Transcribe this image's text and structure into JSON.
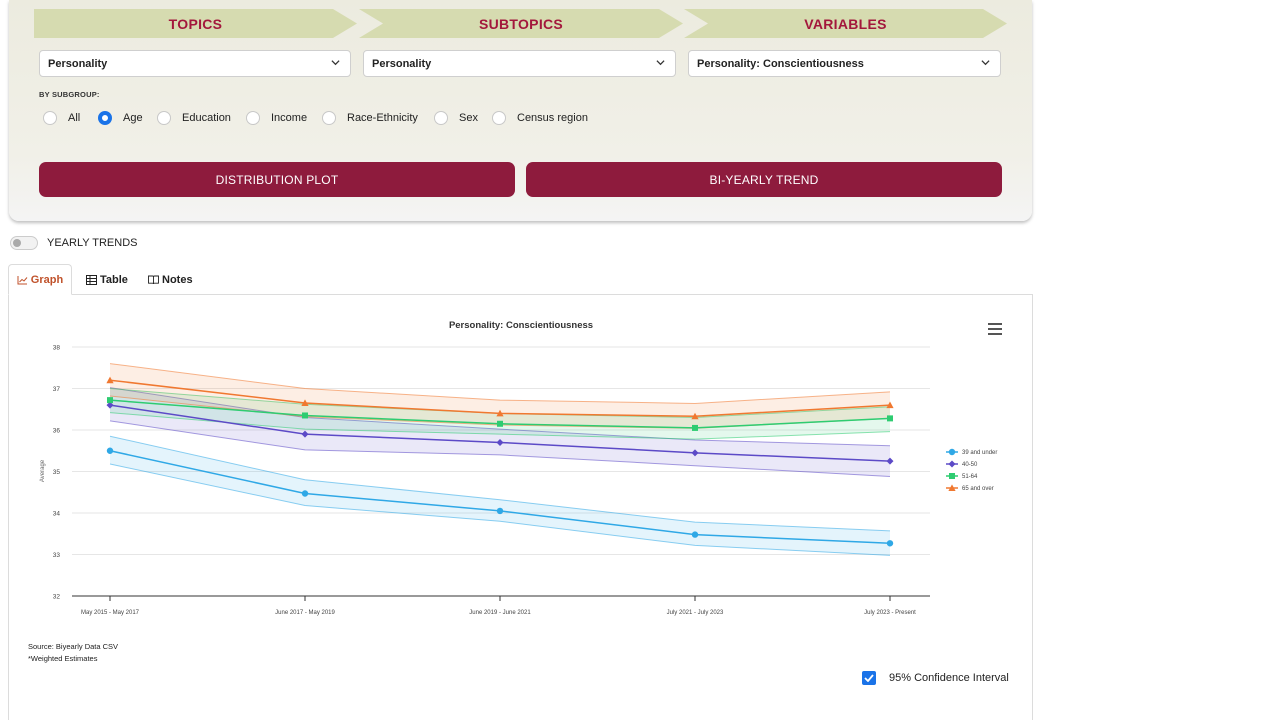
{
  "filters": {
    "steps": [
      "TOPICS",
      "SUBTOPICS",
      "VARIABLES"
    ],
    "topic_value": "Personality",
    "subtopic_value": "Personality",
    "variable_value": "Personality: Conscientiousness",
    "subgroup_label": "BY SUBGROUP:",
    "subgroups": [
      "All",
      "Age",
      "Education",
      "Income",
      "Race-Ethnicity",
      "Sex",
      "Census region"
    ],
    "selected_subgroup": "Age",
    "distribution_button": "DISTRIBUTION PLOT",
    "trend_button": "BI-YEARLY TREND"
  },
  "toggle": {
    "label": "YEARLY TRENDS",
    "on": false
  },
  "tabs": [
    "Graph",
    "Table",
    "Notes"
  ],
  "active_tab": "Graph",
  "footer": {
    "source": "Source: Biyearly Data CSV",
    "note": "*Weighted Estimates",
    "ci_label": "95% Confidence Interval",
    "ci_checked": true
  },
  "colors": {
    "accent": "#8e1b3d",
    "header_text": "#a3173c",
    "chevron": "#d6dbb0",
    "tab_active": "#c0522b",
    "check": "#1a73e8"
  },
  "chart_data": {
    "type": "line",
    "title": "Personality: Conscientiousness",
    "xlabel": "",
    "ylabel": "Average",
    "ylim": [
      32,
      38
    ],
    "yticks": [
      32,
      33,
      34,
      35,
      36,
      37,
      38
    ],
    "categories": [
      "May 2015 - May 2017",
      "June 2017 - May 2019",
      "June 2019 - June 2021",
      "July 2021 - July 2023",
      "July 2023 - Present"
    ],
    "legend_position": "right",
    "series": [
      {
        "name": "39 and under",
        "color": "#2fa8e6",
        "marker": "circle",
        "values": [
          35.5,
          34.47,
          34.05,
          33.48,
          33.27
        ],
        "lower": [
          35.18,
          34.18,
          33.8,
          33.22,
          32.98
        ],
        "upper": [
          35.85,
          34.8,
          34.32,
          33.78,
          33.57
        ]
      },
      {
        "name": "40-50",
        "color": "#5c4ac7",
        "marker": "diamond",
        "values": [
          36.6,
          35.9,
          35.7,
          35.45,
          35.25
        ],
        "lower": [
          36.22,
          35.52,
          35.4,
          35.14,
          34.88
        ],
        "upper": [
          37.02,
          36.3,
          36.02,
          35.76,
          35.62
        ]
      },
      {
        "name": "51-64",
        "color": "#2ecc71",
        "marker": "square",
        "values": [
          36.72,
          36.35,
          36.15,
          36.05,
          36.28
        ],
        "lower": [
          36.42,
          36.02,
          35.9,
          35.78,
          35.96
        ],
        "upper": [
          37.0,
          36.62,
          36.4,
          36.3,
          36.56
        ]
      },
      {
        "name": "65 and over",
        "color": "#f07830",
        "marker": "triangle",
        "values": [
          37.2,
          36.65,
          36.4,
          36.33,
          36.6
        ],
        "lower": [
          36.82,
          36.32,
          36.12,
          36.04,
          36.28
        ],
        "upper": [
          37.6,
          37.0,
          36.72,
          36.64,
          36.92
        ]
      }
    ]
  }
}
